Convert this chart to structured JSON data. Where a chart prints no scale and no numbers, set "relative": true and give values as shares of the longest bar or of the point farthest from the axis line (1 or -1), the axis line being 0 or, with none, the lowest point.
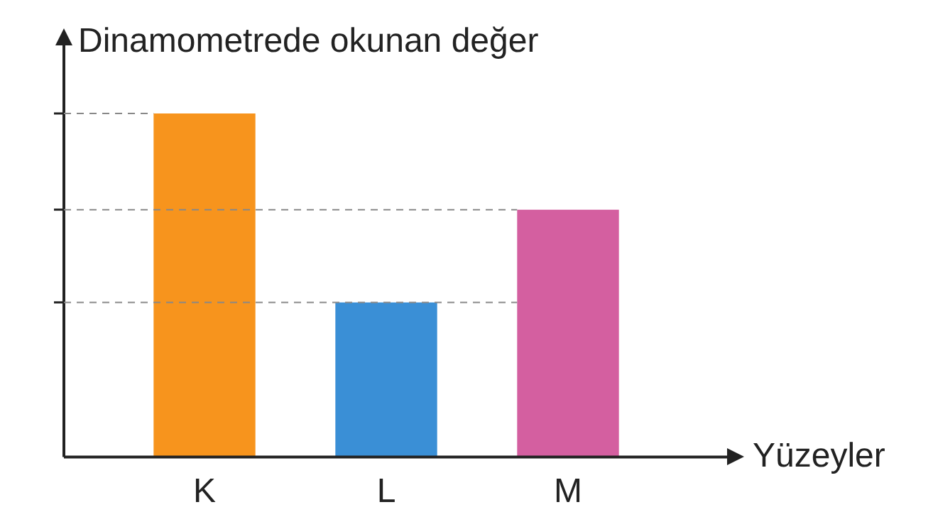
{
  "chart_data": {
    "type": "bar",
    "relative": true,
    "ylabel": "Dinamometrede okunan değer",
    "xlabel": "Yüzeyler",
    "categories": [
      "K",
      "L",
      "M"
    ],
    "values": [
      1,
      0.45,
      0.72
    ],
    "colors": [
      "#f7941d",
      "#3a8fd6",
      "#d45fa0"
    ],
    "ref_lines": [
      {
        "axis": "y",
        "value": 1,
        "line_style": "dashed"
      },
      {
        "axis": "y",
        "value": 0.72,
        "line_style": "dashed"
      },
      {
        "axis": "y",
        "value": 0.45,
        "line_style": "dashed"
      }
    ],
    "grid": false,
    "legend": false
  }
}
